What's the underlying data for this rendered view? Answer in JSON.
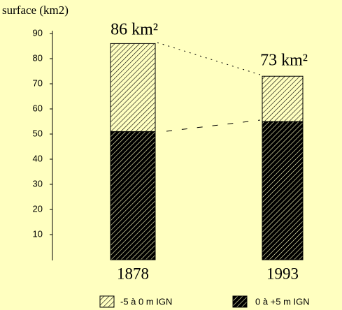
{
  "chart_data": {
    "type": "stacked-bar",
    "title": "surface (km2)",
    "categories": [
      "1878",
      "1993"
    ],
    "series": [
      {
        "name": "0 à +5 m IGN",
        "color": "#000000",
        "values": [
          51,
          55
        ]
      },
      {
        "name": "-5 à 0 m IGN",
        "color": "#000000",
        "values": [
          35,
          18
        ]
      }
    ],
    "annotations": [
      "86 km²",
      "73 km²"
    ],
    "ylim": [
      0,
      90
    ],
    "yticks": [
      10,
      20,
      30,
      40,
      50,
      60,
      70,
      80,
      90
    ]
  }
}
